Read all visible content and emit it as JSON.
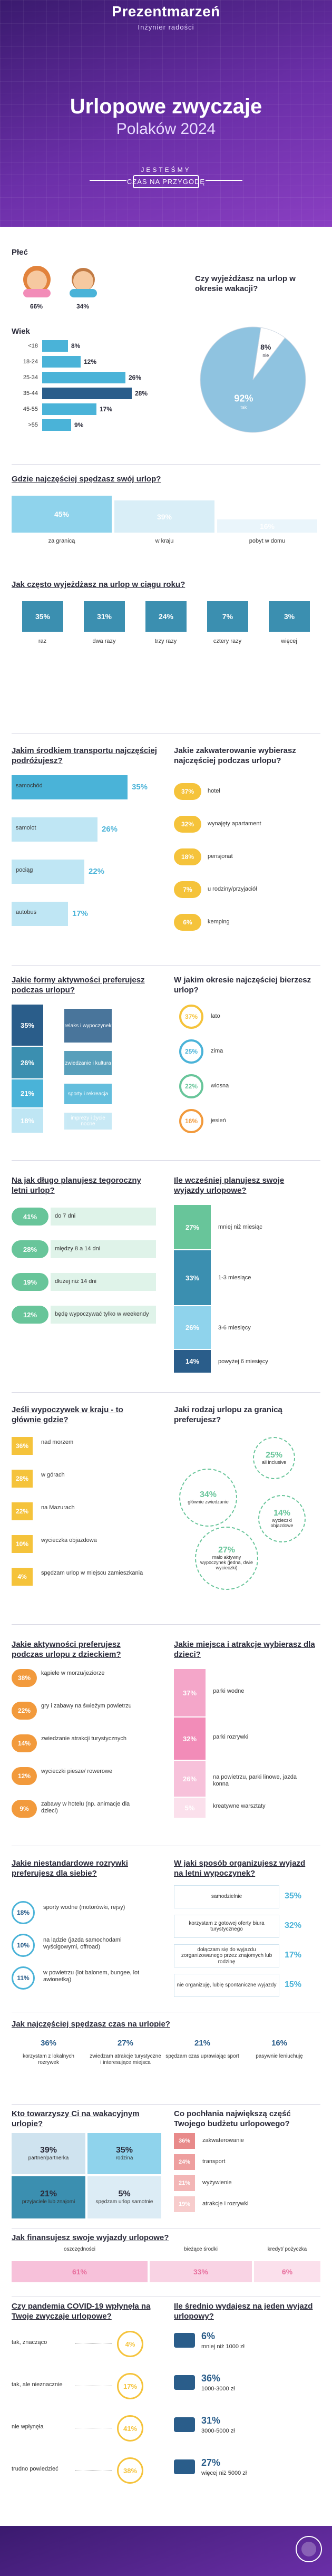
{
  "header": {
    "brand": "Prezentmarzeń",
    "brand_sub": "Inżynier radości",
    "title_line1": "Urlopowe zwyczaje",
    "title_line2": "Polaków 2024",
    "tag_line1": "JESTEŚMY",
    "tag_line2": "CZAS NA PRZYGODĘ"
  },
  "colors": {
    "purple": "#6b2fa8",
    "cyan": "#4ab3d8",
    "light_cyan": "#bfe6f4",
    "teal": "#3b8fb0",
    "navy": "#2a5d8a",
    "green": "#68c59a",
    "yellow": "#f5c33b",
    "orange": "#f29a3c",
    "pink": "#f28cb8",
    "red": "#e8463f"
  },
  "gender": {
    "title": "Płeć",
    "female": "66%",
    "male": "34%"
  },
  "age": {
    "title": "Wiek",
    "groups": [
      {
        "label": "<18",
        "value": 8,
        "text": "8%"
      },
      {
        "label": "18-24",
        "value": 12,
        "text": "12%"
      },
      {
        "label": "25-34",
        "value": 26,
        "text": "26%"
      },
      {
        "label": "35-44",
        "value": 28,
        "text": "28%"
      },
      {
        "label": "45-55",
        "value": 17,
        "text": "17%"
      },
      {
        "label": ">55",
        "value": 9,
        "text": "9%"
      }
    ]
  },
  "vacation_pie": {
    "title": "Czy wyjeżdżasz na urlop w okresie wakacji?",
    "slices": [
      {
        "label": "nie",
        "value": 8,
        "text": "8%"
      },
      {
        "label": "tak",
        "value": 92,
        "text": "92%"
      }
    ]
  },
  "where": {
    "title": "Gdzie najczęściej spędzasz swój urlop?",
    "items": [
      {
        "label": "za granicą",
        "value": 45,
        "text": "45%"
      },
      {
        "label": "w kraju",
        "value": 39,
        "text": "39%"
      },
      {
        "label": "pobyt w domu",
        "value": 16,
        "text": "16%"
      }
    ]
  },
  "frequency": {
    "title": "Jak często wyjeżdżasz na urlop w ciągu roku?",
    "items": [
      {
        "label": "raz",
        "value": 35,
        "text": "35%"
      },
      {
        "label": "dwa razy",
        "value": 31,
        "text": "31%"
      },
      {
        "label": "trzy razy",
        "value": 24,
        "text": "24%"
      },
      {
        "label": "cztery razy",
        "value": 7,
        "text": "7%"
      },
      {
        "label": "więcej",
        "value": 3,
        "text": "3%"
      }
    ]
  },
  "transport": {
    "title": "Jakim środkiem transportu najczęściej podróżujesz?",
    "items": [
      {
        "label": "samochód",
        "value": 35,
        "text": "35%"
      },
      {
        "label": "samolot",
        "value": 26,
        "text": "26%"
      },
      {
        "label": "pociąg",
        "value": 22,
        "text": "22%"
      },
      {
        "label": "autobus",
        "value": 17,
        "text": "17%"
      }
    ]
  },
  "accommodation": {
    "title": "Jakie zakwaterowanie wybierasz najczęściej podczas urlopu?",
    "items": [
      {
        "label": "hotel",
        "text": "37%"
      },
      {
        "label": "wynajęty apartament",
        "text": "32%"
      },
      {
        "label": "pensjonat",
        "text": "18%"
      },
      {
        "label": "u rodziny/przyjaciół",
        "text": "7%"
      },
      {
        "label": "kemping",
        "text": "6%"
      }
    ]
  },
  "activity": {
    "title": "Jakie formy aktywności preferujesz podczas urlopu?",
    "items": [
      {
        "label": "relaks i wypoczynek",
        "text": "35%"
      },
      {
        "label": "zwiedzanie i kultura",
        "text": "26%"
      },
      {
        "label": "sporty i rekreacja",
        "text": "21%"
      },
      {
        "label": "imprezy i życie nocne",
        "text": "18%"
      }
    ]
  },
  "season": {
    "title": "W jakim okresie najczęściej bierzesz urlop?",
    "items": [
      {
        "label": "lato",
        "text": "37%"
      },
      {
        "label": "zima",
        "text": "25%"
      },
      {
        "label": "wiosna",
        "text": "22%"
      },
      {
        "label": "jesień",
        "text": "16%"
      }
    ]
  },
  "duration": {
    "title": "Na jak długo planujesz tegoroczny letni urlop?",
    "items": [
      {
        "label": "do 7 dni",
        "text": "41%"
      },
      {
        "label": "między 8 a 14 dni",
        "text": "28%"
      },
      {
        "label": "dłużej niż 14 dni",
        "text": "19%"
      },
      {
        "label": "będę wypoczywać tylko w weekendy",
        "text": "12%"
      }
    ]
  },
  "planning": {
    "title": "Ile wcześniej planujesz swoje wyjazdy urlopowe?",
    "items": [
      {
        "label": "mniej niż miesiąc",
        "value": 27,
        "text": "27%"
      },
      {
        "label": "1-3 miesiące",
        "value": 33,
        "text": "33%"
      },
      {
        "label": "3-6 miesięcy",
        "value": 26,
        "text": "26%"
      },
      {
        "label": "powyżej 6 miesięcy",
        "value": 14,
        "text": "14%"
      }
    ]
  },
  "domestic": {
    "title": "Jeśli wypoczywek w kraju - to głównie gdzie?",
    "items": [
      {
        "label": "nad morzem",
        "text": "36%"
      },
      {
        "label": "w górach",
        "text": "28%"
      },
      {
        "label": "na Mazurach",
        "text": "22%"
      },
      {
        "label": "wycieczka objazdowa",
        "text": "10%"
      },
      {
        "label": "spędzam urlop w miejscu zamieszkania",
        "text": "4%"
      }
    ]
  },
  "abroad": {
    "title": "Jaki rodzaj urlopu za granicą preferujesz?",
    "items": [
      {
        "label": "all inclusive",
        "text": "25%"
      },
      {
        "label": "głównie zwiedzanie",
        "text": "34%"
      },
      {
        "label": "wycieczki objazdowe",
        "text": "14%"
      },
      {
        "label": "mało aktywny wypoczynek (jedna, dwie wycieczki)",
        "text": "27%"
      }
    ]
  },
  "kids_activity": {
    "title": "Jakie aktywności preferujesz podczas urlopu z dzieckiem?",
    "items": [
      {
        "label": "kąpiele w morzu/jeziorze",
        "text": "38%"
      },
      {
        "label": "gry i zabawy na świeżym powietrzu",
        "text": "22%"
      },
      {
        "label": "zwiedzanie atrakcji turystycznych",
        "text": "14%"
      },
      {
        "label": "wycieczki piesze/ rowerowe",
        "text": "12%"
      },
      {
        "label": "zabawy w hotelu (np. animacje dla dzieci)",
        "text": "9%"
      }
    ]
  },
  "kids_places": {
    "title": "Jakie miejsca i atrakcje wybierasz dla dzieci?",
    "items": [
      {
        "label": "parki wodne",
        "text": "37%"
      },
      {
        "label": "parki rozrywki",
        "text": "32%"
      },
      {
        "label": "na powietrzu, parki linowe, jazda konna",
        "text": "26%"
      },
      {
        "label": "kreatywne warsztaty",
        "text": "5%"
      }
    ]
  },
  "unusual": {
    "title": "Jakie niestandardowe rozrywki preferujesz dla siebie?",
    "items": [
      {
        "label": "sporty wodne (motorówki, rejsy)",
        "text": "18%"
      },
      {
        "label": "na lądzie (jazda samochodami wyścigowymi, offroad)",
        "text": "10%"
      },
      {
        "label": "w powietrzu (lot balonem, bungee, lot awionetką)",
        "text": "11%"
      }
    ]
  },
  "organize": {
    "title": "W jaki sposób organizujesz wyjazd na letni wypoczynek?",
    "items": [
      {
        "label": "samodzielnie",
        "text": "35%"
      },
      {
        "label": "korzystam z gotowej oferty biura turystycznego",
        "text": "32%"
      },
      {
        "label": "dołączam się do wyjazdu zorganizowanego przez znajomych lub rodzinę",
        "text": "17%"
      },
      {
        "label": "nie organizuję, lubię spontaniczne wyjazdy",
        "text": "15%"
      }
    ]
  },
  "time_with": {
    "title": "Jak najczęściej spędzasz czas na urlopie?",
    "items": [
      {
        "label": "korzystam z lokalnych rozrywek",
        "text": "36%"
      },
      {
        "label": "zwiedzam atrakcje turystyczne i interesujące miejsca",
        "text": "27%"
      },
      {
        "label": "spędzam czas uprawiając sport",
        "text": "21%"
      },
      {
        "label": "pasywnie leniuchuję",
        "text": "16%"
      }
    ]
  },
  "companions": {
    "title": "Kto towarzyszy Ci na wakacyjnym urlopie?",
    "items": [
      {
        "label": "partner/partnerka",
        "value": 39,
        "text": "39%"
      },
      {
        "label": "rodzina",
        "value": 35,
        "text": "35%"
      },
      {
        "label": "przyjaciele lub znajomi",
        "value": 21,
        "text": "21%"
      },
      {
        "label": "spędzam urlop samotnie",
        "value": 5,
        "text": "5%"
      }
    ]
  },
  "budget_share": {
    "title": "Co pochłania największą część Twojego budżetu urlopowego?",
    "items": [
      {
        "label": "zakwaterowanie",
        "text": "36%"
      },
      {
        "label": "transport",
        "text": "24%"
      },
      {
        "label": "wyżywienie",
        "text": "21%"
      },
      {
        "label": "atrakcje i rozrywki",
        "text": "19%"
      }
    ]
  },
  "finance": {
    "title": "Jak finansujesz swoje wyjazdy urlopowe?",
    "items": [
      {
        "label": "oszczędności",
        "value": 61,
        "text": "61%"
      },
      {
        "label": "bieżące środki",
        "value": 33,
        "text": "33%"
      },
      {
        "label": "kredyt/ pożyczka",
        "value": 6,
        "text": "6%"
      }
    ]
  },
  "covid": {
    "title": "Czy pandemia COVID-19 wpłynęła na Twoje zwyczaje urlopowe?",
    "items": [
      {
        "label": "tak, znacząco",
        "text": "4%"
      },
      {
        "label": "tak, ale nieznacznie",
        "text": "17%"
      },
      {
        "label": "nie wpłynęła",
        "text": "41%"
      },
      {
        "label": "trudno powiedzieć",
        "text": "38%"
      }
    ]
  },
  "spend": {
    "title": "Ile średnio wydajesz na jeden wyjazd urlopowy?",
    "items": [
      {
        "label": "mniej niż 1000 zł",
        "text": "6%"
      },
      {
        "label": "1000-3000 zł",
        "text": "36%"
      },
      {
        "label": "3000-5000 zł",
        "text": "31%"
      },
      {
        "label": "więcej niż 5000 zł",
        "text": "27%"
      }
    ]
  },
  "chart_data": [
    {
      "type": "bar",
      "title": "Wiek",
      "categories": [
        "<18",
        "18-24",
        "25-34",
        "35-44",
        "45-55",
        ">55"
      ],
      "values": [
        8,
        12,
        26,
        28,
        17,
        9
      ]
    },
    {
      "type": "pie",
      "title": "Czy wyjeżdżasz na urlop w okresie wakacji?",
      "categories": [
        "nie",
        "tak"
      ],
      "values": [
        8,
        92
      ]
    },
    {
      "type": "bar",
      "title": "Gdzie najczęściej spędzasz swój urlop?",
      "categories": [
        "za granicą",
        "w kraju",
        "pobyt w domu"
      ],
      "values": [
        45,
        39,
        16
      ]
    },
    {
      "type": "bar",
      "title": "Jak często wyjeżdżasz na urlop w ciągu roku?",
      "categories": [
        "raz",
        "dwa razy",
        "trzy razy",
        "cztery razy",
        "więcej"
      ],
      "values": [
        35,
        31,
        24,
        7,
        3
      ]
    },
    {
      "type": "bar",
      "title": "Jakim środkiem transportu najczęściej podróżujesz?",
      "categories": [
        "samochód",
        "samolot",
        "pociąg",
        "autobus"
      ],
      "values": [
        35,
        26,
        22,
        17
      ]
    },
    {
      "type": "bar",
      "title": "Jakie zakwaterowanie wybierasz najczęściej podczas urlopu?",
      "categories": [
        "hotel",
        "wynajęty apartament",
        "pensjonat",
        "u rodziny/przyjaciół",
        "kemping"
      ],
      "values": [
        37,
        32,
        18,
        7,
        6
      ]
    },
    {
      "type": "bar",
      "title": "Jakie formy aktywności preferujesz podczas urlopu?",
      "categories": [
        "relaks i wypoczynek",
        "zwiedzanie i kultura",
        "sporty i rekreacja",
        "imprezy i życie nocne"
      ],
      "values": [
        35,
        26,
        21,
        18
      ]
    },
    {
      "type": "bar",
      "title": "W jakim okresie najczęściej bierzesz urlop?",
      "categories": [
        "lato",
        "zima",
        "wiosna",
        "jesień"
      ],
      "values": [
        37,
        25,
        22,
        16
      ]
    },
    {
      "type": "bar",
      "title": "Na jak długo planujesz tegoroczny letni urlop?",
      "categories": [
        "do 7 dni",
        "między 8 a 14 dni",
        "dłużej niż 14 dni",
        "będę wypoczywać tylko w weekendy"
      ],
      "values": [
        41,
        28,
        19,
        12
      ]
    },
    {
      "type": "bar",
      "title": "Ile wcześniej planujesz swoje wyjazdy urlopowe?",
      "categories": [
        "mniej niż miesiąc",
        "1-3 miesiące",
        "3-6 miesięcy",
        "powyżej 6 miesięcy"
      ],
      "values": [
        27,
        33,
        26,
        14
      ]
    },
    {
      "type": "bar",
      "title": "Jeśli wypoczywek w kraju - to głównie gdzie?",
      "categories": [
        "nad morzem",
        "w górach",
        "na Mazurach",
        "wycieczka objazdowa",
        "spędzam urlop w miejscu zamieszkania"
      ],
      "values": [
        36,
        28,
        22,
        10,
        4
      ]
    },
    {
      "type": "bar",
      "title": "Jaki rodzaj urlopu za granicą preferujesz?",
      "categories": [
        "all inclusive",
        "głównie zwiedzanie",
        "wycieczki objazdowe",
        "mało aktywny wypoczynek (jedna, dwie wycieczki)"
      ],
      "values": [
        25,
        34,
        14,
        27
      ]
    },
    {
      "type": "bar",
      "title": "Jakie aktywności preferujesz podczas urlopu z dzieckiem?",
      "categories": [
        "kąpiele w morzu/jeziorze",
        "gry i zabawy na świeżym powietrzu",
        "zwiedzanie atrakcji turystycznych",
        "wycieczki piesze/ rowerowe",
        "zabawy w hotelu (np. animacje dla dzieci)"
      ],
      "values": [
        38,
        22,
        14,
        12,
        9
      ]
    },
    {
      "type": "bar",
      "title": "Jakie miejsca i atrakcje wybierasz dla dzieci?",
      "categories": [
        "parki wodne",
        "parki rozrywki",
        "na powietrzu, parki linowe, jazda konna",
        "kreatywne warsztaty"
      ],
      "values": [
        37,
        32,
        26,
        5
      ]
    },
    {
      "type": "bar",
      "title": "Jakie niestandardowe rozrywki preferujesz dla siebie?",
      "categories": [
        "sporty wodne (motorówki, rejsy)",
        "na lądzie (jazda samochodami wyścigowymi, offroad)",
        "w powietrzu (lot balonem, bungee, lot awionetką)"
      ],
      "values": [
        18,
        10,
        11
      ]
    },
    {
      "type": "bar",
      "title": "W jaki sposób organizujesz wyjazd na letni wypoczynek?",
      "categories": [
        "samodzielnie",
        "korzystam z gotowej oferty biura turystycznego",
        "dołączam się do wyjazdu zorganizowanego przez znajomych lub rodzinę",
        "nie organizuję, lubię spontaniczne wyjazdy"
      ],
      "values": [
        35,
        32,
        17,
        15
      ]
    },
    {
      "type": "bar",
      "title": "Jak najczęściej spędzasz czas na urlopie?",
      "categories": [
        "korzystam z lokalnych rozrywek",
        "zwiedzam atrakcje turystyczne i interesujące miejsca",
        "spędzam czas uprawiając sport",
        "pasywnie leniuchuję"
      ],
      "values": [
        36,
        27,
        21,
        16
      ]
    },
    {
      "type": "bar",
      "title": "Kto towarzyszy Ci na wakacyjnym urlopie?",
      "categories": [
        "partner/partnerka",
        "rodzina",
        "przyjaciele lub znajomi",
        "spędzam urlop samotnie"
      ],
      "values": [
        39,
        35,
        21,
        5
      ]
    },
    {
      "type": "bar",
      "title": "Co pochłania największą część Twojego budżetu urlopowego?",
      "categories": [
        "zakwaterowanie",
        "transport",
        "wyżywienie",
        "atrakcje i rozrywki"
      ],
      "values": [
        36,
        24,
        21,
        19
      ]
    },
    {
      "type": "bar",
      "title": "Jak finansujesz swoje wyjazdy urlopowe?",
      "categories": [
        "oszczędności",
        "bieżące środki",
        "kredyt/ pożyczka"
      ],
      "values": [
        61,
        33,
        6
      ]
    },
    {
      "type": "bar",
      "title": "Czy pandemia COVID-19 wpłynęła na Twoje zwyczaje urlopowe?",
      "categories": [
        "tak, znacząco",
        "tak, ale nieznacznie",
        "nie wpłynęła",
        "trudno powiedzieć"
      ],
      "values": [
        4,
        17,
        41,
        38
      ]
    },
    {
      "type": "bar",
      "title": "Ile średnio wydajesz na jeden wyjazd urlopowy?",
      "categories": [
        "mniej niż 1000 zł",
        "1000-3000 zł",
        "3000-5000 zł",
        "więcej niż 5000 zł"
      ],
      "values": [
        6,
        36,
        31,
        27
      ]
    }
  ]
}
